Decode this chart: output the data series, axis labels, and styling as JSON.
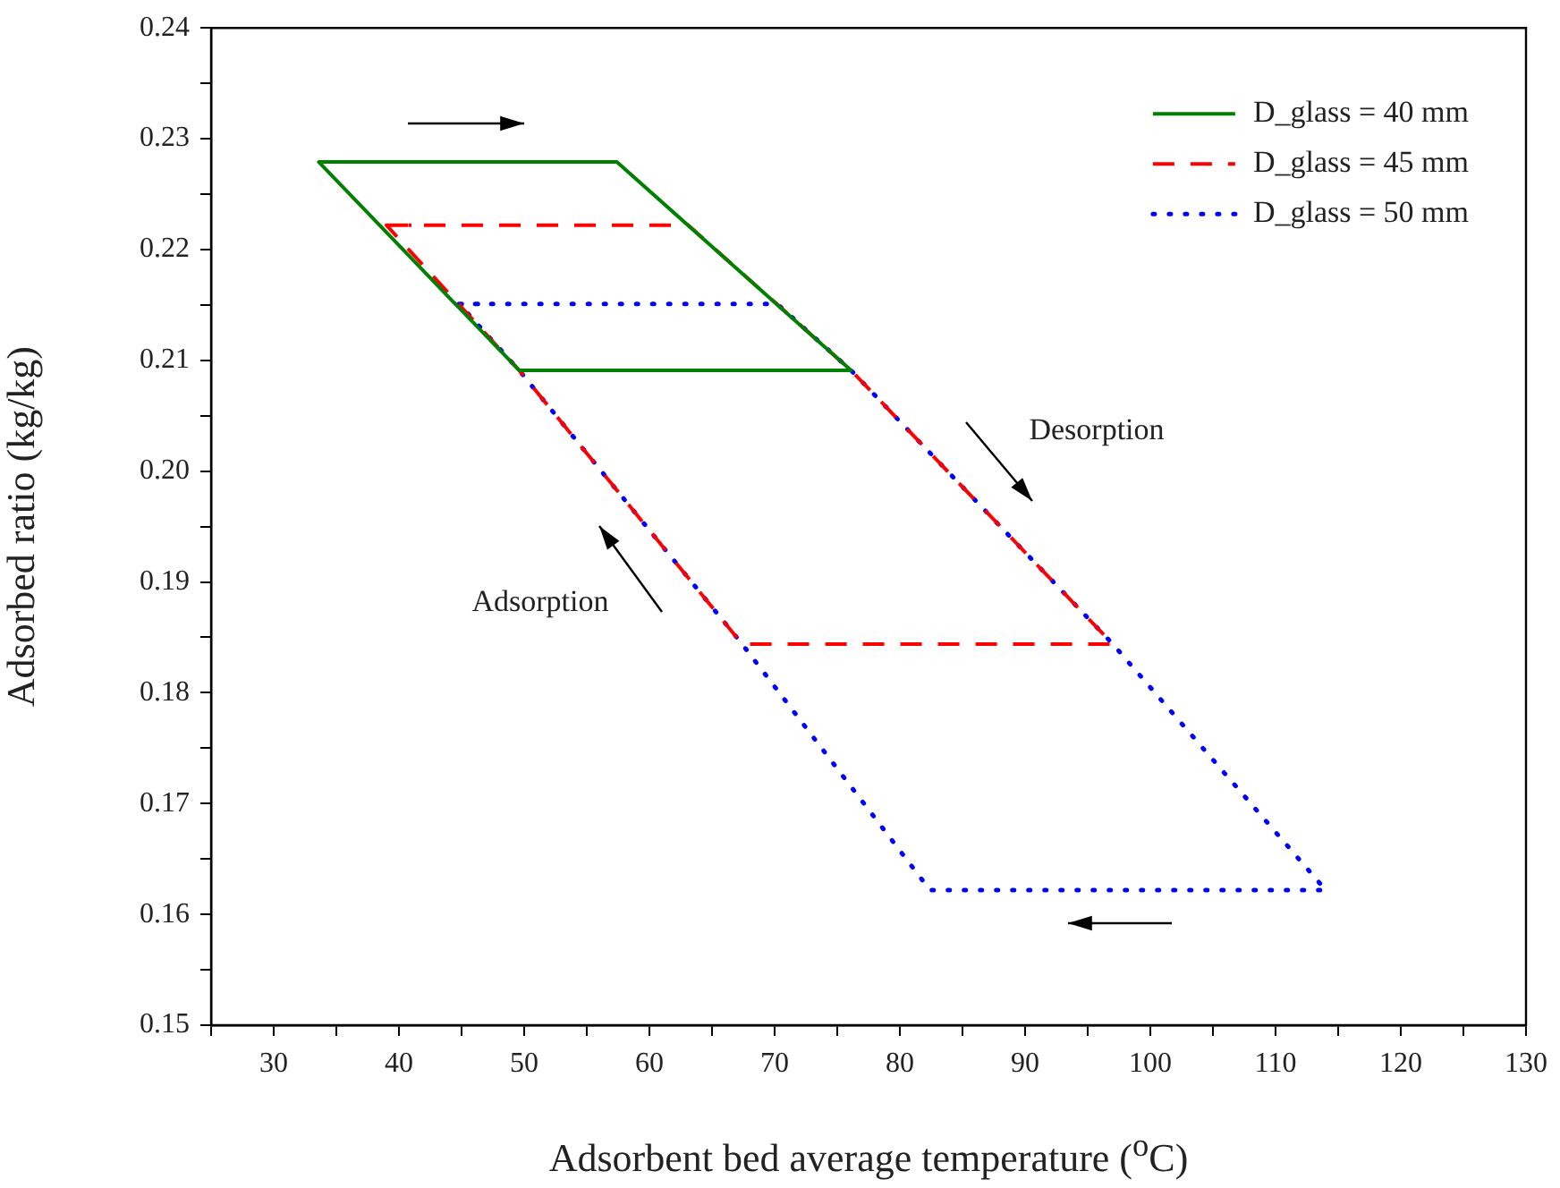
{
  "chart_data": {
    "type": "line",
    "xlabel": "Adsorbent bed average temperature ($^{o}$C)",
    "ylabel": "Adsorbed ratio (kg/kg)",
    "xlim": [
      25,
      130
    ],
    "ylim": [
      0.15,
      0.24
    ],
    "xticks": [
      {
        "value": 25,
        "label": null
      },
      30,
      {
        "value": 35,
        "label": null
      },
      40,
      {
        "value": 45,
        "label": null
      },
      50,
      {
        "value": 55,
        "label": null
      },
      60,
      {
        "value": 65,
        "label": null
      },
      70,
      {
        "value": 75,
        "label": null
      },
      80,
      {
        "value": 85,
        "label": null
      },
      90,
      {
        "value": 95,
        "label": null
      },
      100,
      {
        "value": 105,
        "label": null
      },
      110,
      {
        "value": 115,
        "label": null
      },
      120,
      {
        "value": 125,
        "label": null
      },
      130
    ],
    "yticks": [
      0.15,
      {
        "value": 0.155,
        "label": null
      },
      0.16,
      {
        "value": 0.165,
        "label": null
      },
      0.17,
      {
        "value": 0.175,
        "label": null
      },
      0.18,
      {
        "value": 0.185,
        "label": null
      },
      0.19,
      {
        "value": 0.195,
        "label": null
      },
      {
        "value": 0.2,
        "label": "0.20"
      },
      {
        "value": 0.205,
        "label": null
      },
      0.21,
      {
        "value": 0.215,
        "label": null
      },
      0.22,
      {
        "value": 0.225,
        "label": null
      },
      0.23,
      {
        "value": 0.235,
        "label": null
      },
      0.24
    ],
    "grid": false,
    "legend": "top right",
    "marker": "none",
    "series": [
      {
        "name": "D_glass = 40 mm",
        "color": "#008000",
        "line_style": "solid",
        "x": [
          33.6,
          57.4,
          76.1,
          49.6,
          33.6,
          36.0
        ],
        "values": [
          0.2279,
          0.2279,
          0.2091,
          0.2091,
          0.2279,
          0.2279
        ]
      },
      {
        "name": "D_glass = 45 mm",
        "color": "#ff0000",
        "line_style": "dashed",
        "x": [
          39.0,
          63.1,
          76.1,
          97.0,
          67.4,
          49.6,
          39.0,
          41.0
        ],
        "values": [
          0.2222,
          0.2222,
          0.2091,
          0.1844,
          0.1844,
          0.2091,
          0.2222,
          0.2222
        ]
      },
      {
        "name": "D_glass = 50 mm",
        "color": "#0000ff",
        "line_style": "dotted",
        "x": [
          44.8,
          70.2,
          76.1,
          97.0,
          114.0,
          82.4,
          67.4,
          49.6,
          44.8,
          47.0
        ],
        "values": [
          0.2151,
          0.2151,
          0.2091,
          0.1844,
          0.1622,
          0.1622,
          0.1844,
          0.2091,
          0.2151,
          0.2151
        ]
      }
    ],
    "annotations": [
      "Desorption",
      "Adsorption"
    ]
  }
}
